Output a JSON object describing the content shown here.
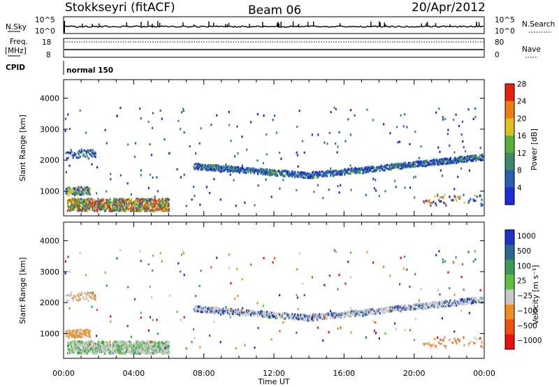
{
  "header": {
    "station": "Stokkseyri (fitACF)",
    "beam": "Beam 06",
    "date": "20/Apr/2012"
  },
  "summary": {
    "nsky_label": "N.Sky",
    "nsky_ticks": [
      "10^5",
      "10^0"
    ],
    "nsearch_label": "N.Search",
    "nsearch_ticks": [
      "10^5",
      "10^0"
    ],
    "freq_label_1": "Freq.",
    "freq_label_2": "[MHz]",
    "freq_ticks": [
      "18",
      "8"
    ],
    "nave_label": "Nave",
    "nave_ticks": [
      "80",
      "0"
    ],
    "cpid_label": "CPID",
    "cpid_value": "normal 150"
  },
  "chart_data": [
    {
      "type": "heatmap",
      "name": "power",
      "ylabel": "Slant Range [km]",
      "yticks": [
        1000,
        2000,
        3000,
        4000
      ],
      "ylim": [
        200,
        4600
      ],
      "xticks": [
        "00:00",
        "04:00",
        "08:00",
        "12:00",
        "16:00",
        "20:00",
        "00:00"
      ],
      "xlim_hours": [
        0,
        24
      ],
      "colorbar_label": "Power [dB]",
      "colorbar_ticks": [
        "4",
        "8",
        "12",
        "16",
        "20",
        "24",
        "28"
      ],
      "colorbar_colors": [
        "#1e2bd8",
        "#2a5fb0",
        "#3d8a6a",
        "#58b03c",
        "#e0c020",
        "#f07d10",
        "#e82010"
      ]
    },
    {
      "type": "heatmap",
      "name": "velocity",
      "ylabel": "Slant Range [km]",
      "yticks": [
        1000,
        2000,
        3000,
        4000
      ],
      "ylim": [
        200,
        4600
      ],
      "xticks": [
        "00:00",
        "04:00",
        "08:00",
        "12:00",
        "16:00",
        "20:00",
        "00:00"
      ],
      "xlim_hours": [
        0,
        24
      ],
      "xlabel": "Time UT",
      "colorbar_label": "Velocity [m s⁻¹]",
      "colorbar_ticks": [
        "1000",
        "500",
        "100",
        "25",
        "−25",
        "−100",
        "−500",
        "−1000"
      ],
      "colorbar_colors": [
        "#2030c8",
        "#2a6a90",
        "#3a9a58",
        "#60c040",
        "#c8c8c8",
        "#f09020",
        "#f05010",
        "#e81010"
      ]
    }
  ]
}
